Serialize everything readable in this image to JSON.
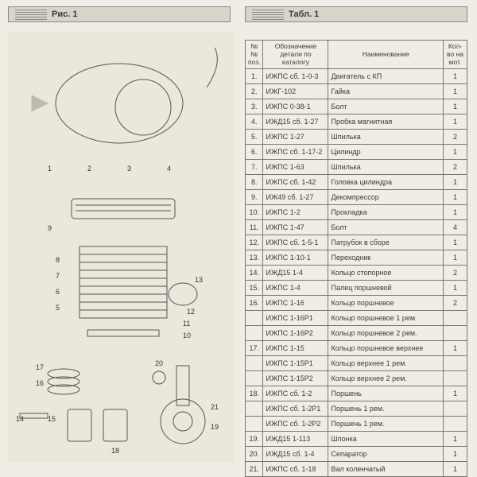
{
  "headers": {
    "left": "Рис. 1",
    "right": "Табл. 1"
  },
  "table": {
    "columns": [
      "№№ поз.",
      "Обозначение детали по каталогу",
      "Наименование",
      "Кол-во на мот."
    ],
    "rows": [
      [
        "1.",
        "ИЖПС сб. 1-0-3",
        "Двигатель с КП",
        "1"
      ],
      [
        "2.",
        "ИЖГ-102",
        "Гайка",
        "1"
      ],
      [
        "3.",
        "ИЖПС 0-38-1",
        "Болт",
        "1"
      ],
      [
        "4.",
        "ИЖД15 сб. 1-27",
        "Пробка магнитная",
        "1"
      ],
      [
        "5.",
        "ИЖПС 1-27",
        "Шпилька",
        "2"
      ],
      [
        "6.",
        "ИЖПС сб. 1-17-2",
        "Цилиндр",
        "1"
      ],
      [
        "7.",
        "ИЖПС 1-63",
        "Шпилька",
        "2"
      ],
      [
        "8.",
        "ИЖПС сб. 1-42",
        "Головка цилиндра",
        "1"
      ],
      [
        "9.",
        "ИЖ49 сб. 1-27",
        "Декомпрессор",
        "1"
      ],
      [
        "10.",
        "ИЖПС 1-2",
        "Прокладка",
        "1"
      ],
      [
        "11.",
        "ИЖПС 1-47",
        "Болт",
        "4"
      ],
      [
        "12.",
        "ИЖПС сб. 1-5-1",
        "Патрубок в сборе",
        "1"
      ],
      [
        "13.",
        "ИЖПС 1-10-1",
        "Переходник",
        "1"
      ],
      [
        "14.",
        "ИЖД15 1-4",
        "Кольцо стопорное",
        "2"
      ],
      [
        "15.",
        "ИЖПС 1-4",
        "Палец поршневой",
        "1"
      ],
      [
        "16.",
        "ИЖПС 1-16",
        "Кольцо поршневое",
        "2"
      ],
      [
        "",
        "ИЖПС 1-16Р1",
        "Кольцо поршневое 1 рем.",
        ""
      ],
      [
        "",
        "ИЖПС 1-16Р2",
        "Кольцо поршневое 2 рем.",
        ""
      ],
      [
        "17.",
        "ИЖПС 1-15",
        "Кольцо поршневое верхнее",
        "1"
      ],
      [
        "",
        "ИЖПС 1-15Р1",
        "Кольцо верхнее 1 рем.",
        ""
      ],
      [
        "",
        "ИЖПС 1-15Р2",
        "Кольцо верхнее 2 рем.",
        ""
      ],
      [
        "18.",
        "ИЖПС сб. 1-2",
        "Поршень",
        "1"
      ],
      [
        "",
        "ИЖПС сб. 1-2Р1",
        "Поршень 1 рем.",
        ""
      ],
      [
        "",
        "ИЖПС сб. 1-2Р2",
        "Поршень 1 рем.",
        ""
      ],
      [
        "19.",
        "ИЖД15 1-113",
        "Шпонка",
        "1"
      ],
      [
        "20.",
        "ИЖД15 сб. 1-4",
        "Сепаратор",
        "1"
      ],
      [
        "21.",
        "ИЖПС сб. 1-18",
        "Вал коленчатый",
        "1"
      ]
    ]
  },
  "diagram": {
    "callouts": [
      "1",
      "2",
      "3",
      "4",
      "5",
      "6",
      "7",
      "8",
      "9",
      "10",
      "11",
      "12",
      "13",
      "14",
      "15",
      "16",
      "17",
      "18",
      "19",
      "20",
      "21"
    ]
  },
  "colors": {
    "page_bg": "#f0ede4",
    "header_bg": "#d8d4c8",
    "border": "#777"
  }
}
